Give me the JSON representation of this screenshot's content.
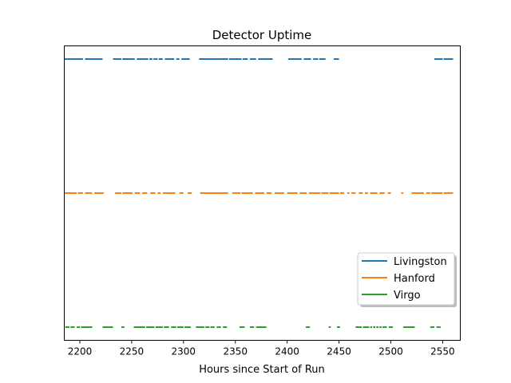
{
  "chart_data": {
    "type": "line",
    "title": "Detector Uptime",
    "xlabel": "Hours since Start of Run",
    "ylabel": "",
    "xlim": [
      2185,
      2567
    ],
    "xticks": [
      2200,
      2250,
      2300,
      2350,
      2400,
      2450,
      2500,
      2550
    ],
    "xtick_labels": [
      "2200",
      "2250",
      "2300",
      "2350",
      "2400",
      "2450",
      "2500",
      "2550"
    ],
    "yticks": [],
    "grid": false,
    "legend_position": "lower-right",
    "series": [
      {
        "name": "Livingston",
        "color": "#1f77b4",
        "level": 3,
        "segments": [
          [
            2185,
            2203
          ],
          [
            2205,
            2222
          ],
          [
            2232,
            2240
          ],
          [
            2241,
            2253
          ],
          [
            2255,
            2266
          ],
          [
            2267,
            2270
          ],
          [
            2271,
            2275
          ],
          [
            2276,
            2280
          ],
          [
            2282,
            2291
          ],
          [
            2293,
            2296
          ],
          [
            2298,
            2306
          ],
          [
            2315,
            2343
          ],
          [
            2344,
            2356
          ],
          [
            2357,
            2362
          ],
          [
            2364,
            2370
          ],
          [
            2372,
            2386
          ],
          [
            2401,
            2414
          ],
          [
            2416,
            2423
          ],
          [
            2425,
            2430
          ],
          [
            2431,
            2437
          ],
          [
            2445,
            2450
          ],
          [
            2542,
            2550
          ],
          [
            2551,
            2560
          ]
        ]
      },
      {
        "name": "Hanford",
        "color": "#ff7f0e",
        "level": 2,
        "segments": [
          [
            2185,
            2197
          ],
          [
            2198,
            2203
          ],
          [
            2205,
            2212
          ],
          [
            2214,
            2223
          ],
          [
            2234,
            2240
          ],
          [
            2241,
            2251
          ],
          [
            2253,
            2258
          ],
          [
            2260,
            2265
          ],
          [
            2268,
            2273
          ],
          [
            2275,
            2278
          ],
          [
            2280,
            2292
          ],
          [
            2296,
            2300
          ],
          [
            2304,
            2308
          ],
          [
            2316,
            2343
          ],
          [
            2347,
            2355
          ],
          [
            2356,
            2367
          ],
          [
            2369,
            2378
          ],
          [
            2380,
            2385
          ],
          [
            2388,
            2397
          ],
          [
            2400,
            2410
          ],
          [
            2412,
            2419
          ],
          [
            2421,
            2432
          ],
          [
            2433,
            2440
          ],
          [
            2441,
            2450
          ],
          [
            2451,
            2455
          ],
          [
            2458,
            2460
          ],
          [
            2462,
            2466
          ],
          [
            2469,
            2473
          ],
          [
            2475,
            2478
          ],
          [
            2480,
            2487
          ],
          [
            2489,
            2494
          ],
          [
            2497,
            2500
          ],
          [
            2510,
            2512
          ],
          [
            2520,
            2532
          ],
          [
            2534,
            2538
          ],
          [
            2539,
            2550
          ],
          [
            2551,
            2560
          ]
        ]
      },
      {
        "name": "Virgo",
        "color": "#2ca02c",
        "level": 1,
        "segments": [
          [
            2186,
            2190
          ],
          [
            2191,
            2195
          ],
          [
            2197,
            2200
          ],
          [
            2201,
            2212
          ],
          [
            2222,
            2232
          ],
          [
            2240,
            2243
          ],
          [
            2252,
            2263
          ],
          [
            2264,
            2272
          ],
          [
            2273,
            2280
          ],
          [
            2281,
            2286
          ],
          [
            2288,
            2293
          ],
          [
            2294,
            2300
          ],
          [
            2301,
            2307
          ],
          [
            2312,
            2320
          ],
          [
            2321,
            2325
          ],
          [
            2326,
            2330
          ],
          [
            2332,
            2336
          ],
          [
            2338,
            2342
          ],
          [
            2354,
            2359
          ],
          [
            2364,
            2368
          ],
          [
            2370,
            2380
          ],
          [
            2418,
            2422
          ],
          [
            2440,
            2442
          ],
          [
            2448,
            2451
          ],
          [
            2466,
            2472
          ],
          [
            2473,
            2479
          ],
          [
            2480,
            2482
          ],
          [
            2483,
            2485
          ],
          [
            2486,
            2488
          ],
          [
            2489,
            2491
          ],
          [
            2492,
            2496
          ],
          [
            2498,
            2502
          ],
          [
            2512,
            2523
          ],
          [
            2538,
            2542
          ],
          [
            2544,
            2548
          ]
        ]
      }
    ]
  }
}
